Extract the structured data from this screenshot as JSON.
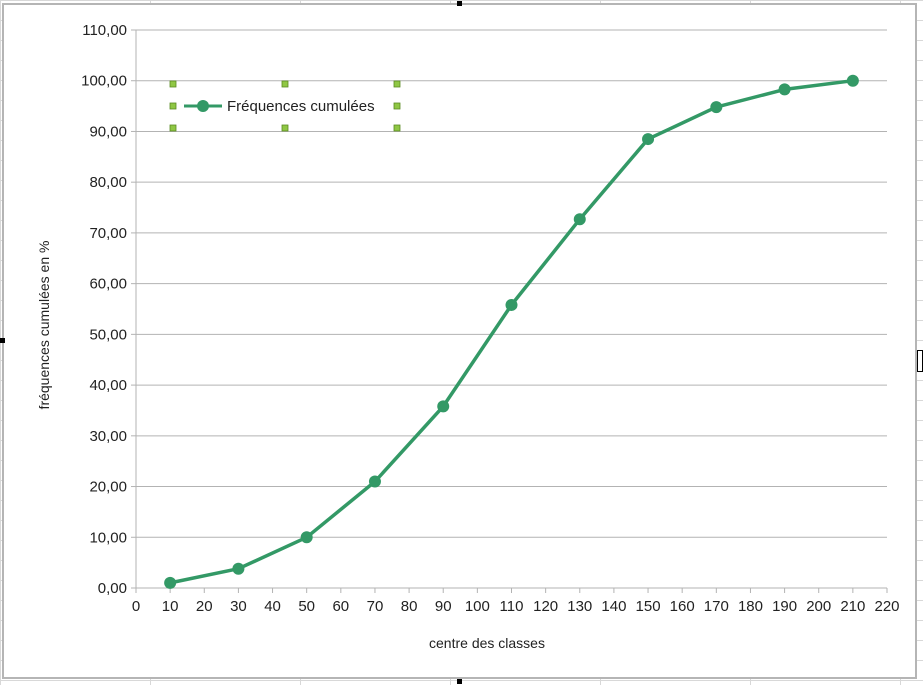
{
  "chart_data": {
    "type": "line",
    "title": "",
    "xlabel": "centre des classes",
    "ylabel": "fréquences cumulées en %",
    "xlim": [
      0,
      220
    ],
    "ylim": [
      0,
      110
    ],
    "x_ticks": [
      "0",
      "10",
      "20",
      "30",
      "40",
      "50",
      "60",
      "70",
      "80",
      "90",
      "100",
      "110",
      "120",
      "130",
      "140",
      "150",
      "160",
      "170",
      "180",
      "190",
      "200",
      "210",
      "220"
    ],
    "y_ticks": [
      "0,00",
      "10,00",
      "20,00",
      "30,00",
      "40,00",
      "50,00",
      "60,00",
      "70,00",
      "80,00",
      "90,00",
      "100,00",
      "110,00"
    ],
    "grid": "horizontal",
    "legend_position": "top-left",
    "legend_selected": true,
    "series": [
      {
        "name": "Fréquences cumulées",
        "color": "#339966",
        "marker": "circle",
        "x": [
          10,
          30,
          50,
          70,
          90,
          110,
          130,
          150,
          170,
          190,
          210
        ],
        "values": [
          1.0,
          3.8,
          10.0,
          21.0,
          35.8,
          55.8,
          72.7,
          88.5,
          94.8,
          98.3,
          100.0
        ]
      }
    ]
  },
  "colors": {
    "gridline": "#b3b3b3",
    "axis": "#b3b3b3",
    "selection_handle": "#8fc744"
  }
}
